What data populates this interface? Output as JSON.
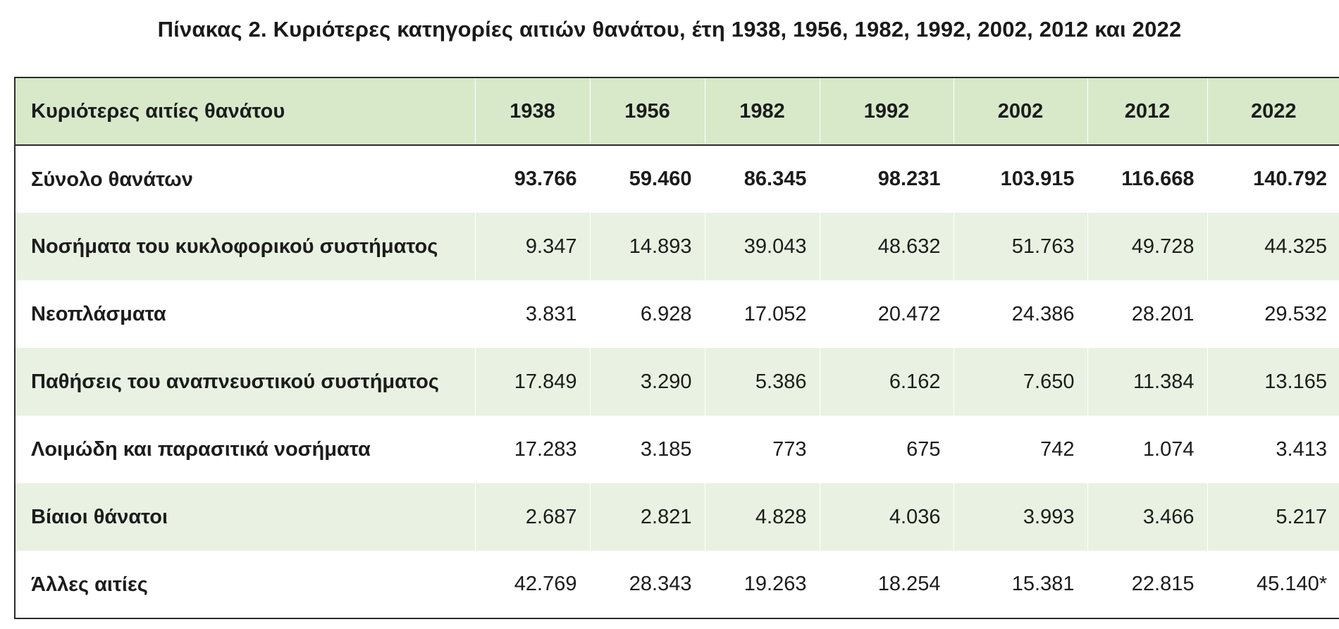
{
  "title": "Πίνακας 2.  Κυριότερες κατηγορίες αιτιών θανάτου, έτη 1938, 1956, 1982, 1992, 2002, 2012 και 2022",
  "table": {
    "header": {
      "label": "Κυριότερες αιτίες θανάτου",
      "years": [
        "1938",
        "1956",
        "1982",
        "1992",
        "2002",
        "2012",
        "2022"
      ]
    },
    "rows": [
      {
        "label": "Σύνολο θανάτων",
        "values": [
          "93.766",
          "59.460",
          "86.345",
          "98.231",
          "103.915",
          "116.668",
          "140.792"
        ]
      },
      {
        "label": "Νοσήματα του κυκλοφορικού συστήματος",
        "values": [
          "9.347",
          "14.893",
          "39.043",
          "48.632",
          "51.763",
          "49.728",
          "44.325"
        ]
      },
      {
        "label": "Νεοπλάσματα",
        "values": [
          "3.831",
          "6.928",
          "17.052",
          "20.472",
          "24.386",
          "28.201",
          "29.532"
        ]
      },
      {
        "label": "Παθήσεις του αναπνευστικού συστήματος",
        "values": [
          "17.849",
          "3.290",
          "5.386",
          "6.162",
          "7.650",
          "11.384",
          "13.165"
        ]
      },
      {
        "label": "Λοιμώδη και παρασιτικά νοσήματα",
        "values": [
          "17.283",
          "3.185",
          "773",
          "675",
          "742",
          "1.074",
          "3.413"
        ]
      },
      {
        "label": "Βίαιοι θάνατοι",
        "values": [
          "2.687",
          "2.821",
          "4.828",
          "4.036",
          "3.993",
          "3.466",
          "5.217"
        ]
      },
      {
        "label": "Άλλες αιτίες",
        "values": [
          "42.769",
          "28.343",
          "19.263",
          "18.254",
          "15.381",
          "22.815",
          "45.140*"
        ]
      }
    ]
  },
  "colors": {
    "header_bg": "#d8e9c9",
    "alt_row_bg": "#e9f2e2",
    "border": "#2b2b2b"
  }
}
